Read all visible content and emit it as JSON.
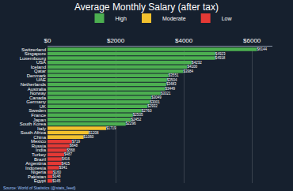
{
  "chart_data": {
    "type": "bar",
    "title": "Average Monthly Salary (after tax)",
    "orientation": "horizontal",
    "legend": "top",
    "grid": true,
    "data_labels": true,
    "annotations": [
      "Source: World of Statistics (@stats_feed)"
    ],
    "categories": [
      "Switzerland",
      "Singapore",
      "Luxembourg",
      "USA",
      "Iceland",
      "Qatar",
      "Denmark",
      "UAE",
      "Netherlands",
      "Australia",
      "Norway",
      "Canada",
      "Germany",
      "UK",
      "Sweden",
      "France",
      "Japan",
      "South Korea",
      "Italy",
      "South Africa",
      "China",
      "Mexico",
      "Russia",
      "India",
      "Turkey",
      "Brazil",
      "Argentina",
      "Indonesia",
      "Nigeria",
      "Pakistan",
      "Egypt"
    ],
    "series": [
      {
        "name": "High",
        "color": "#4caf50",
        "values": [
          6144,
          4923,
          4918,
          4232,
          4100,
          3984,
          3551,
          3504,
          3483,
          3449,
          3321,
          3049,
          3001,
          2932,
          2760,
          2505,
          2452,
          2296,
          null,
          null,
          null,
          null,
          null,
          null,
          null,
          null,
          null,
          null,
          null,
          null,
          null
        ],
        "value_labels": [
          "$6144",
          "$4923",
          "$4918",
          "$4232",
          "$4100",
          "$3984",
          "$3551",
          "$3504",
          "$3483",
          "$3449",
          "$3321",
          "$3049",
          "$3001",
          "$2932",
          "$2760",
          "$2505",
          "$2452",
          "$2296",
          null,
          null,
          null,
          null,
          null,
          null,
          null,
          null,
          null,
          null,
          null,
          null,
          null
        ]
      },
      {
        "name": "Moderate",
        "color": "#f2c12e",
        "values": [
          null,
          null,
          null,
          null,
          null,
          null,
          null,
          null,
          null,
          null,
          null,
          null,
          null,
          null,
          null,
          null,
          null,
          null,
          1719,
          1208,
          1060,
          null,
          null,
          null,
          null,
          null,
          null,
          null,
          null,
          null,
          null
        ],
        "value_labels": [
          null,
          null,
          null,
          null,
          null,
          null,
          null,
          null,
          null,
          null,
          null,
          null,
          null,
          null,
          null,
          null,
          null,
          null,
          "$1719",
          "$1208",
          "$1060",
          null,
          null,
          null,
          null,
          null,
          null,
          null,
          null,
          null,
          null
        ]
      },
      {
        "name": "Low",
        "color": "#e53935",
        "values": [
          null,
          null,
          null,
          null,
          null,
          null,
          null,
          null,
          null,
          null,
          null,
          null,
          null,
          null,
          null,
          null,
          null,
          null,
          null,
          null,
          null,
          719,
          648,
          568,
          487,
          416,
          415,
          341,
          160,
          148,
          145
        ],
        "value_labels": [
          null,
          null,
          null,
          null,
          null,
          null,
          null,
          null,
          null,
          null,
          null,
          null,
          null,
          null,
          null,
          null,
          null,
          null,
          null,
          null,
          null,
          "$719",
          "$648",
          "$568",
          "$487",
          "$416",
          "$415",
          "$341",
          "$160",
          "$148",
          "$145"
        ]
      }
    ],
    "xlim": [
      0,
      6600
    ],
    "xticks": [
      {
        "value": 0,
        "label": "$0"
      },
      {
        "value": 2000,
        "label": "$2000"
      },
      {
        "value": 4000,
        "label": "$4000"
      },
      {
        "value": 6000,
        "label": "$6000"
      }
    ]
  }
}
